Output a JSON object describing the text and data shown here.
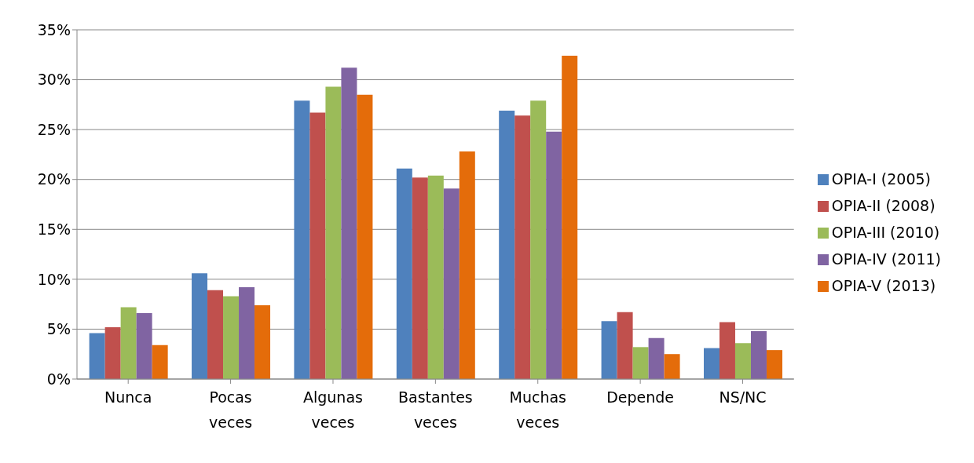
{
  "chart_data": {
    "type": "bar",
    "categories": [
      "Nunca",
      "Pocas veces",
      "Algunas veces",
      "Bastantes veces",
      "Muchas veces",
      "Depende",
      "NS/NC"
    ],
    "series": [
      {
        "name": "OPIA-I (2005)",
        "color": "#4f81bd",
        "values": [
          4.6,
          10.6,
          27.9,
          21.1,
          26.9,
          5.8,
          3.1
        ]
      },
      {
        "name": "OPIA-II (2008)",
        "color": "#c0504d",
        "values": [
          5.2,
          8.9,
          26.7,
          20.2,
          26.4,
          6.7,
          5.7
        ]
      },
      {
        "name": "OPIA-III (2010)",
        "color": "#9bbb59",
        "values": [
          7.2,
          8.3,
          29.3,
          20.4,
          27.9,
          3.2,
          3.6
        ]
      },
      {
        "name": "OPIA-IV (2011)",
        "color": "#8064a2",
        "values": [
          6.6,
          9.2,
          31.2,
          19.1,
          24.8,
          4.1,
          4.8
        ]
      },
      {
        "name": "OPIA-V (2013)",
        "color": "#e46c0a",
        "values": [
          3.4,
          7.4,
          28.5,
          22.8,
          32.4,
          2.5,
          2.9
        ]
      }
    ],
    "ylim": [
      0,
      35
    ],
    "yticks": [
      {
        "value": 0,
        "label": "0%"
      },
      {
        "value": 5,
        "label": "5%"
      },
      {
        "value": 10,
        "label": "10%"
      },
      {
        "value": 15,
        "label": "15%"
      },
      {
        "value": 20,
        "label": "20%"
      },
      {
        "value": 25,
        "label": "25%"
      },
      {
        "value": 30,
        "label": "30%"
      },
      {
        "value": 35,
        "label": "35%"
      }
    ],
    "grid": "y",
    "legend": "right"
  }
}
